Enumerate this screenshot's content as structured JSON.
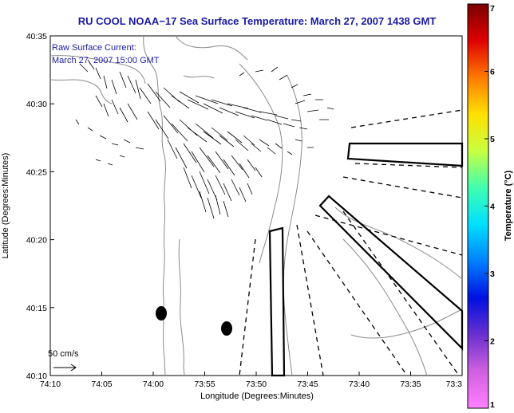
{
  "title": "RU COOL  NOAA−17  Sea Surface Temperature:  March 27, 2007 1438 GMT",
  "annotation": {
    "line1": "Raw Surface Current:",
    "line2": "March 27, 2007 15:00 GMT"
  },
  "scale_label": "50 cm/s",
  "x_axis": {
    "label": "Longitude (Degrees:Minutes)",
    "ticks": [
      "74:10",
      "74:05",
      "74:00",
      "73:55",
      "73:50",
      "73:45",
      "73:40",
      "73:35",
      "73:3"
    ]
  },
  "y_axis": {
    "label": "Latitude (Degrees:Minutes)",
    "ticks": [
      "40:35",
      "40:30",
      "40:25",
      "40:20",
      "40:15",
      "40:10"
    ]
  },
  "colorbar": {
    "label": "Temperature (°C)",
    "ticks": [
      "7",
      "6",
      "5",
      "4",
      "3",
      "2",
      "1"
    ],
    "colors": [
      "#7a0000",
      "#e00000",
      "#ff7a00",
      "#ffe000",
      "#c8ff40",
      "#40ffb0",
      "#00e0ff",
      "#0080ff",
      "#0010e0",
      "#6a30d0",
      "#d060e0",
      "#ff80ff"
    ]
  }
}
